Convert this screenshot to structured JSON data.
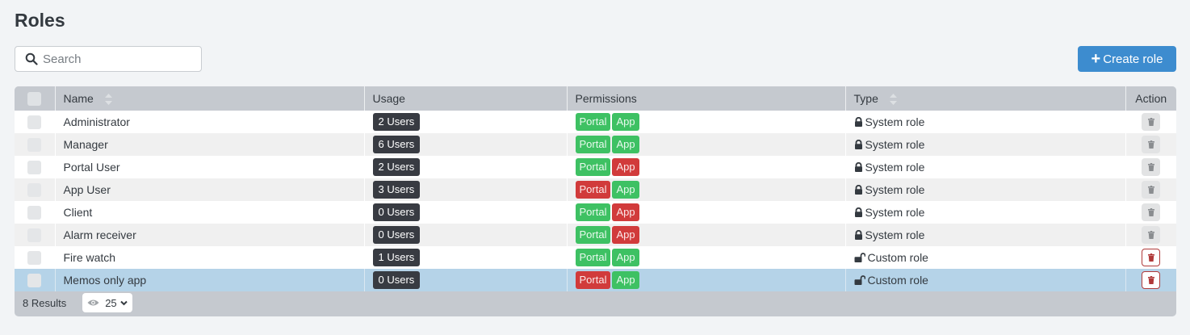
{
  "page": {
    "title": "Roles"
  },
  "search": {
    "placeholder": "Search",
    "value": ""
  },
  "toolbar": {
    "create_label": "Create role",
    "create_icon": "plus-icon",
    "accent": "#3d8ccf"
  },
  "table": {
    "columns": [
      {
        "key": "select",
        "label": ""
      },
      {
        "key": "name",
        "label": "Name",
        "sortable": true
      },
      {
        "key": "usage",
        "label": "Usage"
      },
      {
        "key": "permissions",
        "label": "Permissions"
      },
      {
        "key": "type",
        "label": "Type",
        "sortable": true
      },
      {
        "key": "action",
        "label": "Action"
      }
    ],
    "permission_colors": {
      "granted": "#3ec163",
      "denied": "#d13b3b"
    },
    "rows": [
      {
        "name": "Administrator",
        "usage": "2 Users",
        "portal": "Portal",
        "portal_on": true,
        "app": "App",
        "app_on": true,
        "type": "System role",
        "type_icon": "lock-icon",
        "deletable": false,
        "selected": false
      },
      {
        "name": "Manager",
        "usage": "6 Users",
        "portal": "Portal",
        "portal_on": true,
        "app": "App",
        "app_on": true,
        "type": "System role",
        "type_icon": "lock-icon",
        "deletable": false,
        "selected": false
      },
      {
        "name": "Portal User",
        "usage": "2 Users",
        "portal": "Portal",
        "portal_on": true,
        "app": "App",
        "app_on": false,
        "type": "System role",
        "type_icon": "lock-icon",
        "deletable": false,
        "selected": false
      },
      {
        "name": "App User",
        "usage": "3 Users",
        "portal": "Portal",
        "portal_on": false,
        "app": "App",
        "app_on": true,
        "type": "System role",
        "type_icon": "lock-icon",
        "deletable": false,
        "selected": false
      },
      {
        "name": "Client",
        "usage": "0 Users",
        "portal": "Portal",
        "portal_on": true,
        "app": "App",
        "app_on": false,
        "type": "System role",
        "type_icon": "lock-icon",
        "deletable": false,
        "selected": false
      },
      {
        "name": "Alarm receiver",
        "usage": "0 Users",
        "portal": "Portal",
        "portal_on": true,
        "app": "App",
        "app_on": false,
        "type": "System role",
        "type_icon": "lock-icon",
        "deletable": false,
        "selected": false
      },
      {
        "name": "Fire watch",
        "usage": "1 Users",
        "portal": "Portal",
        "portal_on": true,
        "app": "App",
        "app_on": true,
        "type": "Custom role",
        "type_icon": "unlock-icon",
        "deletable": true,
        "selected": false
      },
      {
        "name": "Memos only app",
        "usage": "0 Users",
        "portal": "Portal",
        "portal_on": false,
        "app": "App",
        "app_on": true,
        "type": "Custom role",
        "type_icon": "unlock-icon",
        "deletable": true,
        "selected": true
      }
    ]
  },
  "footer": {
    "results": "8 Results",
    "page_size": "25",
    "page_size_icon": "eye-icon"
  }
}
